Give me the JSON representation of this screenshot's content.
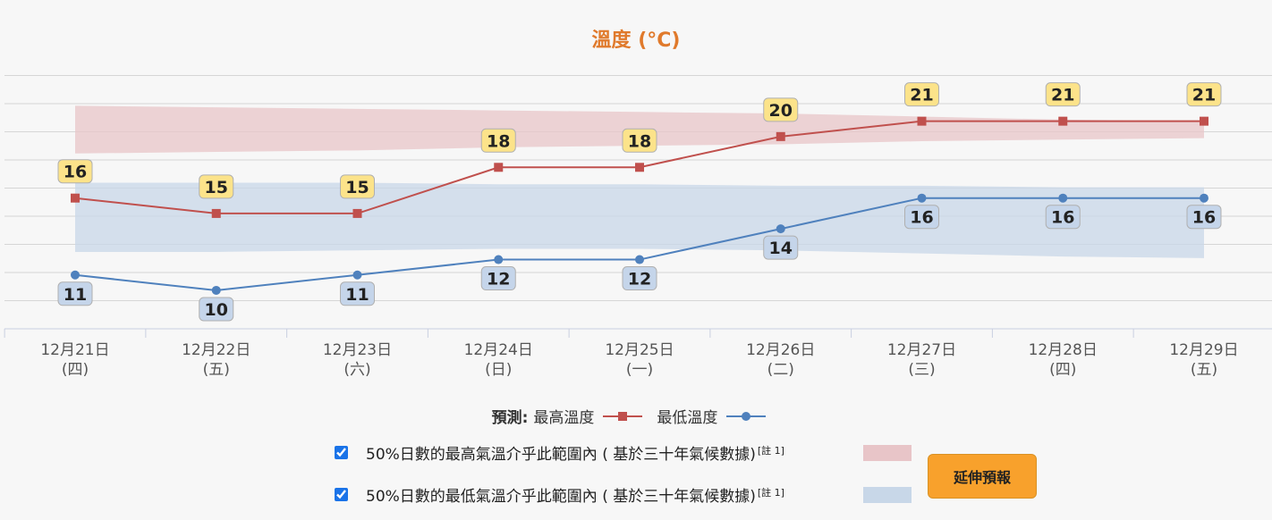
{
  "chart_data": {
    "type": "line",
    "title": "溫度 (°C)",
    "categories": [
      {
        "date": "12月21日",
        "weekday": "(四)"
      },
      {
        "date": "12月22日",
        "weekday": "(五)"
      },
      {
        "date": "12月23日",
        "weekday": "(六)"
      },
      {
        "date": "12月24日",
        "weekday": "(日)"
      },
      {
        "date": "12月25日",
        "weekday": "(一)"
      },
      {
        "date": "12月26日",
        "weekday": "(二)"
      },
      {
        "date": "12月27日",
        "weekday": "(三)"
      },
      {
        "date": "12月28日",
        "weekday": "(四)"
      },
      {
        "date": "12月29日",
        "weekday": "(五)"
      }
    ],
    "series": [
      {
        "name": "最高溫度",
        "color": "#c0504d",
        "marker": "square",
        "values": [
          16,
          15,
          15,
          18,
          18,
          20,
          21,
          21,
          21
        ]
      },
      {
        "name": "最低溫度",
        "color": "#4f81bd",
        "marker": "circle",
        "values": [
          11,
          10,
          11,
          12,
          12,
          14,
          16,
          16,
          16
        ]
      }
    ],
    "bands": [
      {
        "name": "50%日數的最高氣溫介乎此範圍內",
        "color": "#e8c5c8",
        "low": [
          18.9,
          19.0,
          19.1,
          19.3,
          19.4,
          19.5,
          19.7,
          19.8,
          19.9
        ],
        "high": [
          22.0,
          21.9,
          21.8,
          21.7,
          21.6,
          21.5,
          21.3,
          21.1,
          21.0
        ]
      },
      {
        "name": "50%日數的最低氣溫介乎此範圍內",
        "color": "#c8d7e8",
        "low": [
          12.5,
          12.5,
          12.6,
          12.7,
          12.7,
          12.6,
          12.4,
          12.2,
          12.1
        ],
        "high": [
          17.0,
          17.0,
          17.0,
          16.9,
          16.9,
          16.8,
          16.8,
          16.7,
          16.7
        ]
      }
    ],
    "ylim": [
      7.5,
      24
    ],
    "grid": true,
    "legend_position": "bottom"
  },
  "legend": {
    "prefix": "預測:",
    "max_label": "最高溫度",
    "min_label": "最低溫度"
  },
  "ranges": {
    "max_text": "50%日數的最高氣溫介乎此範圍內 ( 基於三十年氣候數據)",
    "min_text": "50%日數的最低氣溫介乎此範圍內 ( 基於三十年氣候數據)",
    "note": "[註 1]"
  },
  "button": {
    "extend_label": "延伸預報"
  },
  "colors": {
    "title": "#e07a2c",
    "max_line": "#c0504d",
    "min_line": "#4f81bd",
    "max_label_bg": "#fce38a",
    "min_label_bg": "#c5d5ea",
    "button": "#f8a12c"
  }
}
